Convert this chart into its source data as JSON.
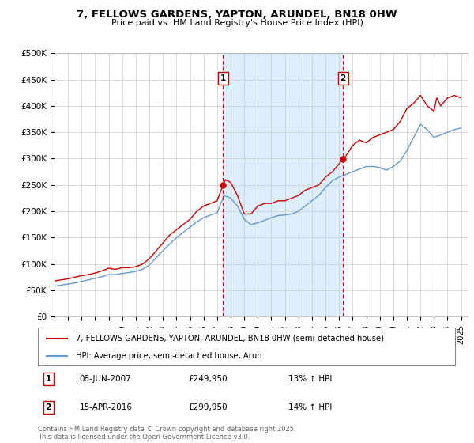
{
  "title": "7, FELLOWS GARDENS, YAPTON, ARUNDEL, BN18 0HW",
  "subtitle": "Price paid vs. HM Land Registry's House Price Index (HPI)",
  "legend_label_red": "7, FELLOWS GARDENS, YAPTON, ARUNDEL, BN18 0HW (semi-detached house)",
  "legend_label_blue": "HPI: Average price, semi-detached house, Arun",
  "footnote": "Contains HM Land Registry data © Crown copyright and database right 2025.\nThis data is licensed under the Open Government Licence v3.0.",
  "marker1_date": "08-JUN-2007",
  "marker1_price": "£249,950",
  "marker1_hpi": "13% ↑ HPI",
  "marker1_x": 2007.44,
  "marker1_y": 249950,
  "marker2_date": "15-APR-2016",
  "marker2_price": "£299,950",
  "marker2_hpi": "14% ↑ HPI",
  "marker2_x": 2016.29,
  "marker2_y": 299950,
  "xmin": 1995,
  "xmax": 2025.5,
  "ymin": 0,
  "ymax": 500000,
  "yticks": [
    0,
    50000,
    100000,
    150000,
    200000,
    250000,
    300000,
    350000,
    400000,
    450000,
    500000
  ],
  "ytick_labels": [
    "£0",
    "£50K",
    "£100K",
    "£150K",
    "£200K",
    "£250K",
    "£300K",
    "£350K",
    "£400K",
    "£450K",
    "£500K"
  ],
  "red_color": "#cc0000",
  "blue_color": "#6699cc",
  "shade_color": "#ddeeff",
  "grid_color": "#cccccc",
  "bg_color": "#ffffff",
  "red_x": [
    1995.0,
    1995.5,
    1996.0,
    1996.5,
    1997.0,
    1997.5,
    1998.0,
    1998.5,
    1999.0,
    1999.5,
    2000.0,
    2000.5,
    2001.0,
    2001.5,
    2002.0,
    2002.5,
    2003.0,
    2003.5,
    2004.0,
    2004.5,
    2005.0,
    2005.5,
    2006.0,
    2006.5,
    2007.0,
    2007.44,
    2007.6,
    2008.0,
    2008.5,
    2009.0,
    2009.5,
    2010.0,
    2010.5,
    2011.0,
    2011.5,
    2012.0,
    2012.5,
    2013.0,
    2013.5,
    2014.0,
    2014.5,
    2015.0,
    2015.5,
    2016.0,
    2016.29,
    2016.5,
    2017.0,
    2017.5,
    2018.0,
    2018.5,
    2019.0,
    2019.5,
    2020.0,
    2020.5,
    2021.0,
    2021.5,
    2022.0,
    2022.5,
    2023.0,
    2023.2,
    2023.5,
    2024.0,
    2024.5,
    2025.0
  ],
  "red_y": [
    68000,
    70000,
    72000,
    75000,
    78000,
    80000,
    83000,
    87000,
    92000,
    90000,
    93000,
    93000,
    95000,
    100000,
    110000,
    125000,
    140000,
    155000,
    165000,
    175000,
    185000,
    200000,
    210000,
    215000,
    220000,
    249950,
    260000,
    255000,
    230000,
    195000,
    195000,
    210000,
    215000,
    215000,
    220000,
    220000,
    225000,
    230000,
    240000,
    245000,
    250000,
    265000,
    275000,
    290000,
    299950,
    305000,
    325000,
    335000,
    330000,
    340000,
    345000,
    350000,
    355000,
    370000,
    395000,
    405000,
    420000,
    400000,
    390000,
    415000,
    400000,
    415000,
    420000,
    415000
  ],
  "blue_x": [
    1995.0,
    1995.5,
    1996.0,
    1996.5,
    1997.0,
    1997.5,
    1998.0,
    1998.5,
    1999.0,
    1999.5,
    2000.0,
    2000.5,
    2001.0,
    2001.5,
    2002.0,
    2002.5,
    2003.0,
    2003.5,
    2004.0,
    2004.5,
    2005.0,
    2005.5,
    2006.0,
    2006.5,
    2007.0,
    2007.5,
    2008.0,
    2008.5,
    2009.0,
    2009.5,
    2010.0,
    2010.5,
    2011.0,
    2011.5,
    2012.0,
    2012.5,
    2013.0,
    2013.5,
    2014.0,
    2014.5,
    2015.0,
    2015.5,
    2016.0,
    2016.5,
    2017.0,
    2017.5,
    2018.0,
    2018.5,
    2019.0,
    2019.5,
    2020.0,
    2020.5,
    2021.0,
    2021.5,
    2022.0,
    2022.5,
    2023.0,
    2023.5,
    2024.0,
    2024.5,
    2025.0
  ],
  "blue_y": [
    58000,
    60000,
    62000,
    64000,
    67000,
    70000,
    73000,
    76000,
    80000,
    80000,
    82000,
    84000,
    86000,
    90000,
    98000,
    112000,
    125000,
    138000,
    150000,
    160000,
    170000,
    180000,
    188000,
    193000,
    197000,
    230000,
    225000,
    210000,
    185000,
    175000,
    178000,
    183000,
    188000,
    192000,
    193000,
    195000,
    200000,
    210000,
    220000,
    230000,
    245000,
    258000,
    265000,
    270000,
    275000,
    280000,
    285000,
    285000,
    283000,
    278000,
    285000,
    295000,
    315000,
    340000,
    365000,
    355000,
    340000,
    345000,
    350000,
    355000,
    358000
  ]
}
